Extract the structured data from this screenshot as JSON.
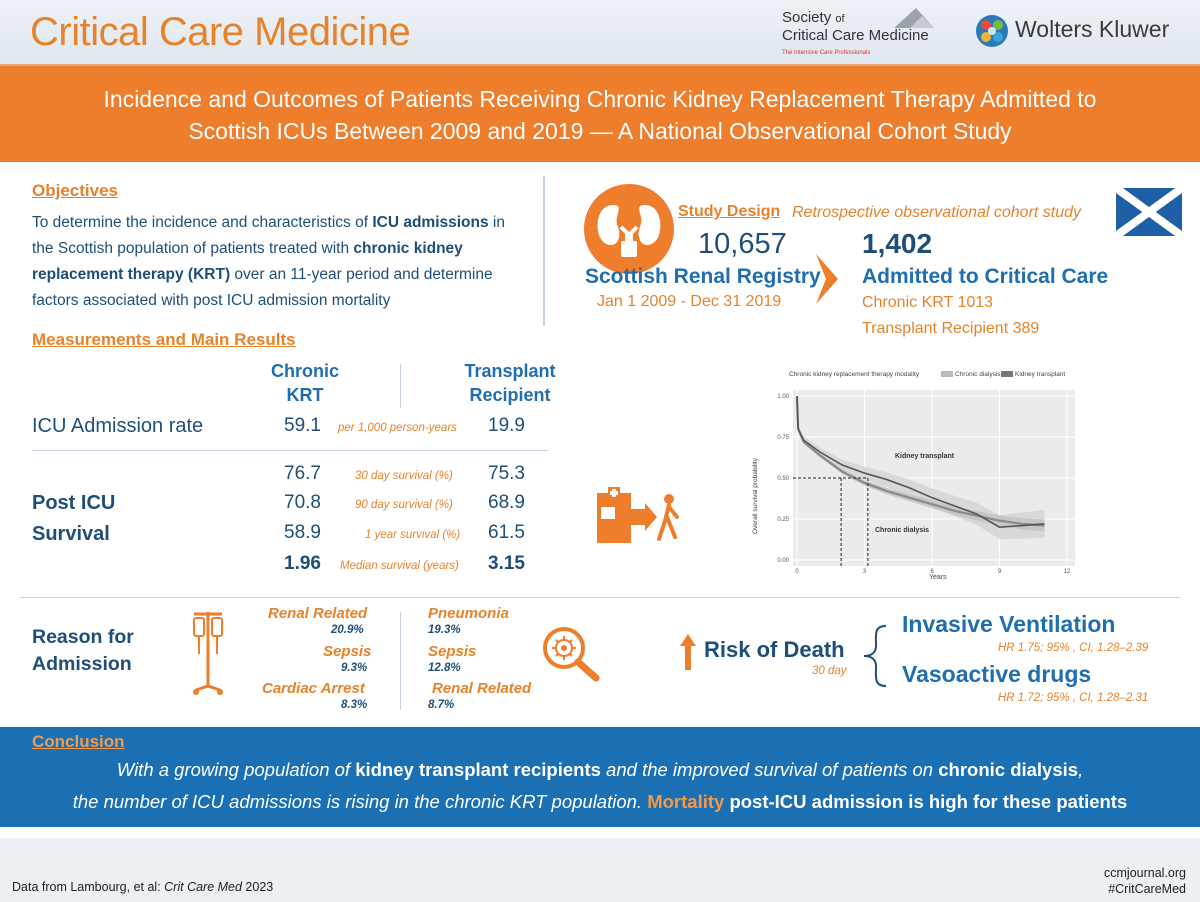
{
  "header": {
    "journal": "Critical Care Medicine",
    "sccm_line1": "Society",
    "sccm_of": "of",
    "sccm_line2": "Critical Care Medicine",
    "sccm_tagline": "The Intensive Care Professionals",
    "wk": "Wolters Kluwer"
  },
  "title": {
    "line1": "Incidence and Outcomes of Patients Receiving Chronic Kidney Replacement Therapy Admitted to",
    "line2": "Scottish ICUs Between 2009 and 2019 — A National Observational Cohort Study"
  },
  "objectives": {
    "heading": "Objectives",
    "l1a": "To determine the incidence and characteristics of ",
    "l1b": "ICU admissions",
    "l1c": " in",
    "l2a": "the Scottish population of patients treated with ",
    "l2b": "chronic kidney",
    "l3a": "replacement therapy (KRT)",
    "l3b": " over an 11-year period and determine",
    "l4": "factors associated with post ICU admission mortality"
  },
  "study_design": {
    "heading": "Study Design",
    "design_type": "Retrospective observational cohort study",
    "count": "10,657",
    "registry": "Scottish Renal Registry",
    "period": "Jan 1 2009 - Dec 31 2019",
    "admitted_count": "1,402",
    "admitted_label": "Admitted to Critical Care",
    "chronic_krt": "Chronic KRT 1013",
    "transplant": "Transplant Recipient 389"
  },
  "results": {
    "heading": "Measurements and Main Results",
    "col1_l1": "Chronic",
    "col1_l2": "KRT",
    "col2_l1": "Transplant",
    "col2_l2": "Recipient",
    "icu_label": "ICU Admission rate",
    "icu_krt": "59.1",
    "icu_unit": "per 1,000 person-years",
    "icu_tx": "19.9",
    "survival_label_l1": "Post ICU",
    "survival_label_l2": "Survival",
    "rows": [
      {
        "krt": "76.7",
        "label": "30 day survival (%)",
        "tx": "75.3"
      },
      {
        "krt": "70.8",
        "label": "90 day survival (%)",
        "tx": "68.9"
      },
      {
        "krt": "58.9",
        "label": "1 year survival (%)",
        "tx": "61.5"
      },
      {
        "krt": "1.96",
        "label": "Median survival (years)",
        "tx": "3.15"
      }
    ]
  },
  "km_chart": {
    "legend_title": "Chronic kidney replacement therapy modality",
    "legend_a": "Chronic dialysis",
    "legend_b": "Kidney transplant",
    "ylabel": "Overall survival probability",
    "xlabel": "Years",
    "yticks": [
      "0.00",
      "0.25",
      "0.50",
      "0.75",
      "1.00"
    ],
    "xticks": [
      "0",
      "3",
      "6",
      "9",
      "12"
    ],
    "label_tx": "Kidney transplant",
    "label_cd": "Chronic dialysis",
    "colors": {
      "dialysis": "#8a8a8a",
      "transplant": "#555555",
      "band": "#d6d6d6"
    }
  },
  "reasons": {
    "label_l1": "Reason for",
    "label_l2": "Admission",
    "krt": [
      {
        "name": "Renal Related",
        "pct": "20.9%"
      },
      {
        "name": "Sepsis",
        "pct": "9.3%"
      },
      {
        "name": "Cardiac Arrest",
        "pct": "8.3%"
      }
    ],
    "tx": [
      {
        "name": "Pneumonia",
        "pct": "19.3%"
      },
      {
        "name": "Sepsis",
        "pct": "12.8%"
      },
      {
        "name": "Renal Related",
        "pct": "8.7%"
      }
    ]
  },
  "risk": {
    "label": "Risk of Death",
    "sub": "30 day",
    "factor1": "Invasive Ventilation",
    "hr1": "HR 1.75; 95% , CI, 1.28–2.39",
    "factor2": "Vasoactive drugs",
    "hr2": "HR 1.72; 95% , CI, 1.28–2.31"
  },
  "conclusion": {
    "heading": "Conclusion",
    "l1a": "With a growing population of ",
    "l1b": "kidney transplant recipients",
    "l1c": " and the improved survival of patients on ",
    "l1d": "chronic dialysis",
    "l1e": ",",
    "l2a": "the number of ICU admissions is rising in the chronic KRT population. ",
    "l2b": "Mortality",
    "l2c": " post-ICU admission is high for these patients"
  },
  "footer": {
    "source_a": "Data from Lambourg, et al: ",
    "source_b": "Crit Care Med",
    "source_c": " 2023",
    "site": "ccmjournal.org",
    "hashtag": "#CritCareMed"
  },
  "colors": {
    "orange": "#ee7d2c",
    "navy": "#1f4e79",
    "blue": "#1b6fb3"
  }
}
